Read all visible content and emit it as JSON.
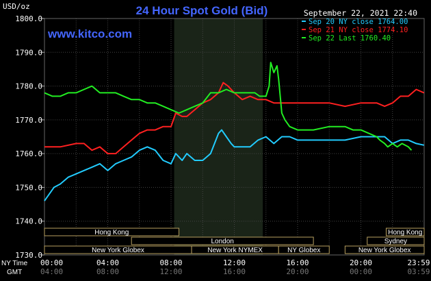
{
  "header": {
    "unit": "USD/oz",
    "title": "24 Hour Spot Gold (Bid)",
    "timestamp": "September 22, 2021 22:40",
    "watermark": "www.kitco.com"
  },
  "time_rows": {
    "ny_label": "NY Time",
    "gmt_label": "GMT"
  },
  "sessions": [
    {
      "name": "Hong Kong",
      "start": 0,
      "end": 8.5,
      "row": 1
    },
    {
      "name": "London",
      "start": 5.5,
      "end": 17,
      "row": 2
    },
    {
      "name": "New York Globex",
      "start": 0,
      "end": 9.3,
      "row": 3
    },
    {
      "name": "New York NYMEX",
      "start": 9.3,
      "end": 14.8,
      "row": 3
    },
    {
      "name": "NY Globex",
      "start": 14.8,
      "end": 18,
      "row": 3
    },
    {
      "name": "Hong Kong",
      "start": 21.6,
      "end": 24,
      "row": 1
    },
    {
      "name": "Sydney",
      "start": 20.4,
      "end": 24,
      "row": 2
    },
    {
      "name": "New York Globex",
      "start": 19,
      "end": 24,
      "row": 3
    }
  ],
  "chart_data": {
    "type": "line",
    "ylim": [
      1730,
      1800
    ],
    "yticks": [
      "1800.0",
      "1790.0",
      "1780.0",
      "1770.0",
      "1760.0",
      "1750.0",
      "1740.0",
      "1730.0"
    ],
    "xlim": [
      0,
      24
    ],
    "xticks_ny": [
      "00:00",
      "04:00",
      "08:00",
      "12:00",
      "16:00",
      "20:00",
      "23:59"
    ],
    "xticks_gmt": [
      "04:00",
      "08:00",
      "12:00",
      "16:00",
      "20:00",
      "00:00",
      "03:59"
    ],
    "shaded_range": [
      8.2,
      13.8
    ],
    "grid": true,
    "legend_position": "top-right",
    "series": [
      {
        "name": "Sep 20 NY close 1764.00",
        "color": "#22ccff",
        "x": [
          0,
          0.3,
          0.6,
          1,
          1.5,
          2,
          2.5,
          3,
          3.5,
          4,
          4.5,
          5,
          5.5,
          6,
          6.5,
          7,
          7.5,
          8,
          8.3,
          8.7,
          9,
          9.5,
          10,
          10.5,
          11,
          11.2,
          11.5,
          11.8,
          12,
          12.5,
          13,
          13.5,
          14,
          14.5,
          15,
          15.5,
          16,
          17,
          18,
          19,
          20,
          21,
          21.5,
          22,
          22.5,
          23,
          23.5,
          23.99
        ],
        "y": [
          1746,
          1748,
          1750,
          1751,
          1753,
          1754,
          1755,
          1756,
          1757,
          1755,
          1757,
          1758,
          1759,
          1761,
          1762,
          1761,
          1758,
          1757,
          1760,
          1758,
          1760,
          1758,
          1758,
          1760,
          1766,
          1767,
          1765,
          1763,
          1762,
          1762,
          1762,
          1764,
          1765,
          1763,
          1765,
          1765,
          1764,
          1764,
          1764,
          1764,
          1765,
          1765,
          1765,
          1763,
          1764,
          1764,
          1763,
          1762.5
        ]
      },
      {
        "name": "Sep 21 NY close 1774.10",
        "color": "#ff2020",
        "x": [
          0,
          1,
          2,
          2.5,
          3,
          3.5,
          4,
          4.5,
          5,
          5.5,
          6,
          6.5,
          7,
          7.5,
          8,
          8.3,
          8.7,
          9,
          9.5,
          10,
          10.5,
          11,
          11.3,
          11.6,
          12,
          12.5,
          13,
          13.5,
          14,
          14.5,
          15,
          16,
          17,
          18,
          19,
          20,
          21,
          21.5,
          22,
          22.5,
          23,
          23.5,
          23.99
        ],
        "y": [
          1762,
          1762,
          1763,
          1763,
          1761,
          1762,
          1760,
          1760,
          1762,
          1764,
          1766,
          1767,
          1767,
          1768,
          1768,
          1772,
          1771,
          1771,
          1773,
          1775,
          1776,
          1778,
          1781,
          1780,
          1778,
          1776,
          1777,
          1776,
          1776,
          1775,
          1775,
          1775,
          1775,
          1775,
          1774,
          1775,
          1775,
          1774,
          1775,
          1777,
          1777,
          1779,
          1778
        ]
      },
      {
        "name": "Sep 22 Last 1760.40",
        "color": "#22ee22",
        "x": [
          0,
          0.5,
          1,
          1.5,
          2,
          2.5,
          3,
          3.5,
          4,
          4.5,
          5,
          5.5,
          6,
          6.5,
          7,
          7.5,
          8,
          8.5,
          9,
          9.5,
          10,
          10.5,
          11,
          11.5,
          12,
          12.5,
          13,
          13.3,
          13.6,
          14,
          14.2,
          14.3,
          14.5,
          14.7,
          14.8,
          15,
          15.2,
          15.5,
          16,
          17,
          18,
          19,
          19.5,
          20,
          20.5,
          21,
          21.2,
          21.5,
          21.7,
          22,
          22.3,
          22.6,
          23,
          23.2
        ],
        "y": [
          1778,
          1777,
          1777,
          1778,
          1778,
          1779,
          1780,
          1778,
          1778,
          1778,
          1777,
          1776,
          1776,
          1775,
          1775,
          1774,
          1773,
          1772,
          1773,
          1774,
          1775,
          1778,
          1778,
          1779,
          1778,
          1778,
          1778,
          1778,
          1777,
          1777,
          1780,
          1787,
          1784,
          1786,
          1782,
          1772,
          1770,
          1768,
          1767,
          1767,
          1768,
          1768,
          1767,
          1767,
          1766,
          1765,
          1764,
          1763,
          1762,
          1763,
          1762,
          1763,
          1762,
          1761
        ]
      }
    ]
  }
}
